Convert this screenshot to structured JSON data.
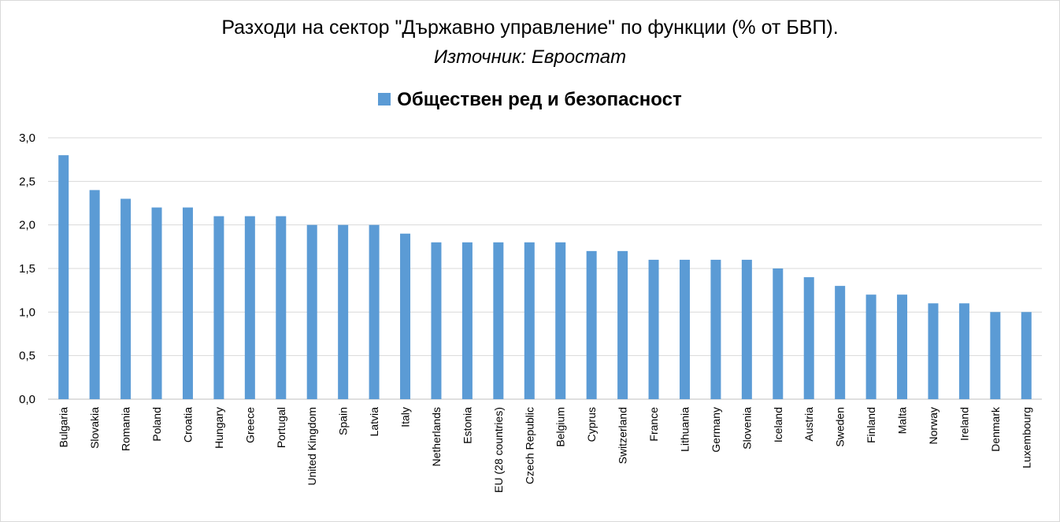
{
  "chart_data": {
    "type": "bar",
    "title": "Разходи на сектор \"Държавно управление\" по функции (% от БВП).",
    "subtitle": "Източник: Евростат",
    "xlabel": "",
    "ylabel": "",
    "ylim": [
      0,
      3
    ],
    "yticks": [
      "0,0",
      "0,5",
      "1,0",
      "1,5",
      "2,0",
      "2,5",
      "3,0"
    ],
    "grid": true,
    "legend_position": "top",
    "categories": [
      "Bulgaria",
      "Slovakia",
      "Romania",
      "Poland",
      "Croatia",
      "Hungary",
      "Greece",
      "Portugal",
      "United Kingdom",
      "Spain",
      "Latvia",
      "Italy",
      "Netherlands",
      "Estonia",
      "EU (28 countries)",
      "Czech Republic",
      "Belgium",
      "Cyprus",
      "Switzerland",
      "France",
      "Lithuania",
      "Germany",
      "Slovenia",
      "Iceland",
      "Austria",
      "Sweden",
      "Finland",
      "Malta",
      "Norway",
      "Ireland",
      "Denmark",
      "Luxembourg"
    ],
    "series": [
      {
        "name": "Обществен ред и безопасност",
        "color": "#5b9bd5",
        "values": [
          2.8,
          2.4,
          2.3,
          2.2,
          2.2,
          2.1,
          2.1,
          2.1,
          2.0,
          2.0,
          2.0,
          1.9,
          1.8,
          1.8,
          1.8,
          1.8,
          1.8,
          1.7,
          1.7,
          1.6,
          1.6,
          1.6,
          1.6,
          1.5,
          1.4,
          1.3,
          1.2,
          1.2,
          1.1,
          1.1,
          1.0,
          1.0
        ]
      }
    ],
    "colors": {
      "bar": "#5b9bd5",
      "gridline": "#d9d9d9",
      "axis": "#bfbfbf"
    }
  }
}
